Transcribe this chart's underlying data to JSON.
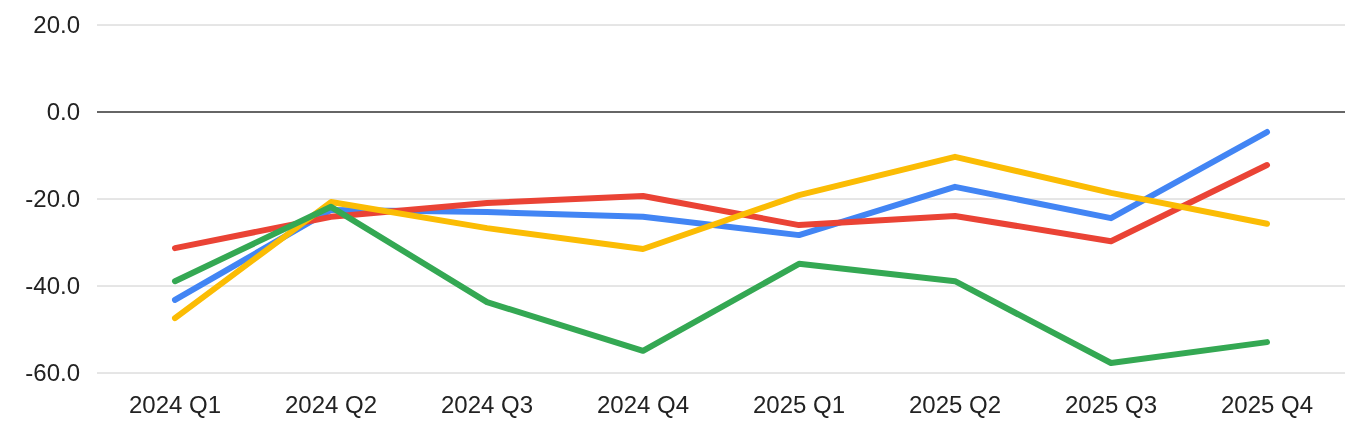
{
  "chart_data": {
    "type": "line",
    "categories": [
      "2024 Q1",
      "2024 Q2",
      "2024 Q3",
      "2024 Q4",
      "2025 Q1",
      "2025 Q2",
      "2025 Q3",
      "2025 Q4"
    ],
    "series": [
      {
        "color": "#4285f4",
        "values": [
          -43.2,
          -22.5,
          -23,
          -24.1,
          -28.3,
          -17.2,
          -24.4,
          -4.6
        ]
      },
      {
        "color": "#ea4335",
        "values": [
          -31.3,
          -24.1,
          -20.9,
          -19.3,
          -26,
          -23.9,
          -29.7,
          -12.2
        ]
      },
      {
        "color": "#fbbc04",
        "values": [
          -47.4,
          -20.7,
          -26.7,
          -31.5,
          -19.1,
          -10.3,
          -18.6,
          -25.7
        ]
      },
      {
        "color": "#34a853",
        "values": [
          -38.9,
          -21.8,
          -43.7,
          -54.9,
          -34.9,
          -38.9,
          -57.7,
          -52.9
        ]
      }
    ],
    "ylim": [
      -60,
      20
    ],
    "yticks": [
      {
        "value": -60,
        "label": "-60.0"
      },
      {
        "value": -40,
        "label": "-40.0"
      },
      {
        "value": -20,
        "label": "-20.0"
      },
      {
        "value": 0,
        "label": "0.0"
      },
      {
        "value": 20,
        "label": "20.0"
      }
    ],
    "grid": "y",
    "line_style": "solid"
  }
}
